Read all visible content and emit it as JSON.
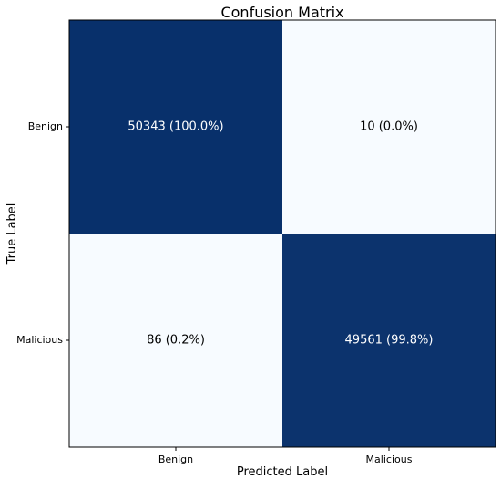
{
  "chart_data": {
    "type": "heatmap",
    "title": "Confusion Matrix",
    "xlabel": "Predicted Label",
    "ylabel": "True Label",
    "x_categories": [
      "Benign",
      "Malicious"
    ],
    "y_categories": [
      "Benign",
      "Malicious"
    ],
    "values": [
      [
        50343,
        10
      ],
      [
        86,
        49561
      ]
    ],
    "cell_labels": [
      [
        "50343 (100.0%)",
        "10 (0.0%)"
      ],
      [
        "86 (0.2%)",
        "49561 (99.8%)"
      ]
    ],
    "row_fractions": [
      [
        1.0,
        0.0
      ],
      [
        0.002,
        0.998
      ]
    ],
    "colormap": "Blues",
    "colors": {
      "high": "#08306b",
      "low": "#f7fbff",
      "text_on_dark": "#ffffff",
      "text_on_light": "#000000"
    },
    "grid": false,
    "legend": "none"
  }
}
